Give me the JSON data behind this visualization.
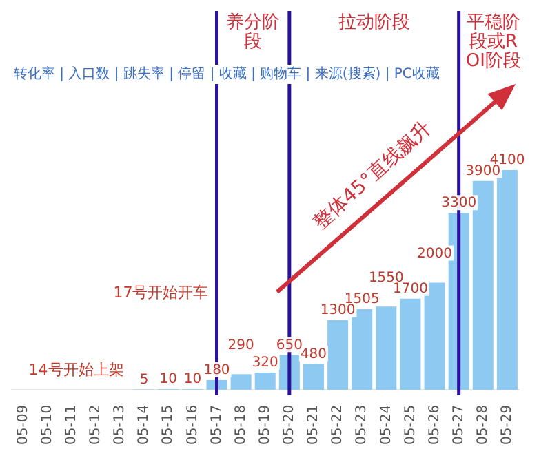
{
  "chart_data": {
    "type": "bar",
    "categories": [
      "05-09",
      "05-10",
      "05-11",
      "05-12",
      "05-13",
      "05-14",
      "05-15",
      "05-16",
      "05-17",
      "05-18",
      "05-19",
      "05-20",
      "05-21",
      "05-22",
      "05-23",
      "05-24",
      "05-25",
      "05-26",
      "05-27",
      "05-28",
      "05-29"
    ],
    "values": [
      null,
      null,
      null,
      null,
      null,
      5,
      10,
      10,
      180,
      290,
      320,
      650,
      480,
      1300,
      1505,
      1550,
      1700,
      2000,
      3300,
      3900,
      4100
    ],
    "color": "#8ec9f2",
    "data_labels": true,
    "grid": false,
    "legend": false,
    "tick_labels": "x",
    "ref_lines": [
      {
        "axis": "x",
        "value": "05-17",
        "label": "养分阶段",
        "color": "#2b129e"
      },
      {
        "axis": "x",
        "value": "05-20",
        "label": "拉动阶段",
        "color": "#2b129e"
      },
      {
        "axis": "x",
        "value": "05-27",
        "label": "平稳阶段或ROI阶段",
        "color": "#2b129e"
      }
    ],
    "annotations": [
      "转化率 | 入口数 | 跳失率 | 停留 | 收藏 | 购物车 | 来源(搜索) | PC收藏",
      "17号开始开车",
      "14号开始上架",
      "整体45°直线飙升"
    ]
  }
}
